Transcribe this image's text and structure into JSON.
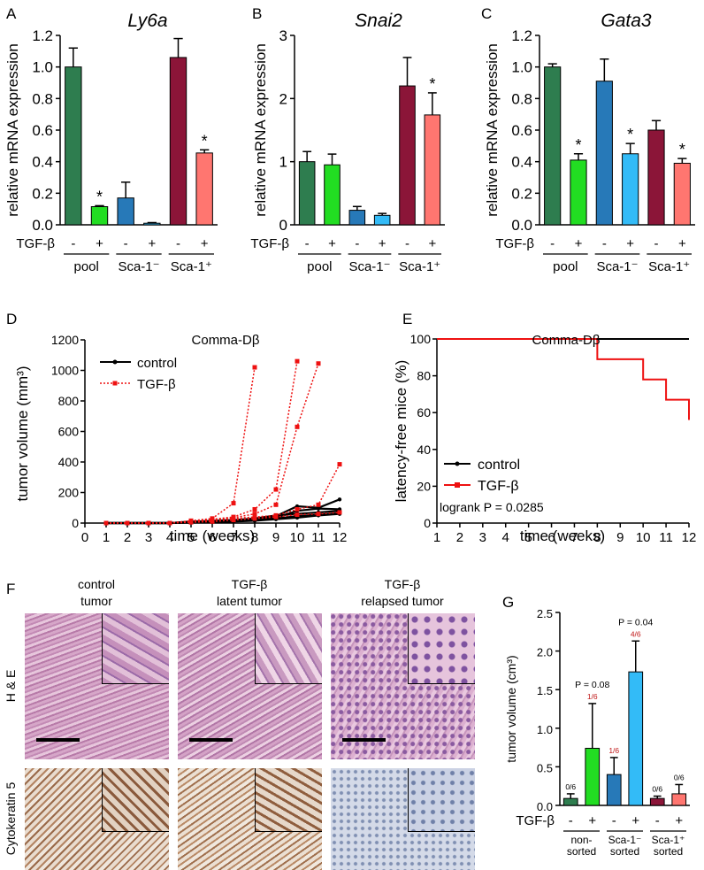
{
  "panels": {
    "A": {
      "letter": "A",
      "gene": "Ly6a",
      "ylabel": "relative mRNA expression"
    },
    "B": {
      "letter": "B",
      "gene": "Snai2",
      "ylabel": "relative mRNA expression"
    },
    "C": {
      "letter": "C",
      "gene": "Gata3",
      "ylabel": "relative mRNA expression"
    },
    "D": {
      "letter": "D",
      "title": "Comma-Dβ",
      "ylabel": "tumor volume (mm³)",
      "xlabel": "time (weeks)"
    },
    "E": {
      "letter": "E",
      "title": "Comma-Dβ",
      "ylabel": "latency-free mice (%)",
      "xlabel": "time (weeks)",
      "stat": "logrank P = 0.0285"
    },
    "F": {
      "letter": "F",
      "col_titles": [
        [
          "control",
          "tumor"
        ],
        [
          "TGF-β",
          "latent tumor"
        ],
        [
          "TGF-β",
          "relapsed tumor"
        ]
      ],
      "row_labels": [
        "H & E",
        "Cytokeratin 5"
      ]
    },
    "G": {
      "letter": "G",
      "ylabel": "tumor volume (cm³)"
    }
  },
  "colors": {
    "dark_green": "#2e7d4f",
    "green": "#22dd22",
    "dark_blue": "#2779b8",
    "light_blue": "#33bbf7",
    "dark_red": "#8b1538",
    "salmon": "#ff7670",
    "line_red": "#ee1111"
  },
  "chart_data": [
    {
      "id": "A",
      "type": "bar",
      "title": "Ly6a",
      "ylabel": "relative mRNA expression",
      "ylim": [
        0,
        1.2
      ],
      "yticks": [
        "0.0",
        "0.2",
        "0.4",
        "0.6",
        "0.8",
        "1.0",
        "1.2"
      ],
      "treatment_label": "TGF-β",
      "treatment": [
        "-",
        "+",
        "-",
        "+",
        "-",
        "+"
      ],
      "groups": [
        "pool",
        "Sca-1⁻",
        "Sca-1⁺"
      ],
      "values": [
        1.0,
        0.115,
        0.17,
        0.01,
        1.06,
        0.455
      ],
      "errors": [
        0.12,
        0.006,
        0.1,
        0.004,
        0.12,
        0.02
      ],
      "significant": [
        false,
        true,
        false,
        false,
        false,
        true
      ]
    },
    {
      "id": "B",
      "type": "bar",
      "title": "Snai2",
      "ylabel": "relative mRNA expression",
      "ylim": [
        0,
        3
      ],
      "yticks": [
        "0",
        "1",
        "2",
        "3"
      ],
      "treatment_label": "TGF-β",
      "treatment": [
        "-",
        "+",
        "-",
        "+",
        "-",
        "+"
      ],
      "groups": [
        "pool",
        "Sca-1⁻",
        "Sca-1⁺"
      ],
      "values": [
        1.0,
        0.95,
        0.23,
        0.15,
        2.2,
        1.74
      ],
      "errors": [
        0.16,
        0.17,
        0.06,
        0.03,
        0.45,
        0.35
      ],
      "significant": [
        false,
        false,
        false,
        false,
        false,
        true
      ]
    },
    {
      "id": "C",
      "type": "bar",
      "title": "Gata3",
      "ylabel": "relative mRNA expression",
      "ylim": [
        0,
        1.2
      ],
      "yticks": [
        "0.0",
        "0.2",
        "0.4",
        "0.6",
        "0.8",
        "1.0",
        "1.2"
      ],
      "treatment_label": "TGF-β",
      "treatment": [
        "-",
        "+",
        "-",
        "+",
        "-",
        "+"
      ],
      "groups": [
        "pool",
        "Sca-1⁻",
        "Sca-1⁺"
      ],
      "values": [
        1.0,
        0.41,
        0.91,
        0.45,
        0.6,
        0.39
      ],
      "errors": [
        0.02,
        0.04,
        0.14,
        0.065,
        0.06,
        0.03
      ],
      "significant": [
        false,
        true,
        false,
        true,
        false,
        true
      ]
    },
    {
      "id": "D",
      "type": "line",
      "title": "Comma-Dβ",
      "xlabel": "time (weeks)",
      "ylabel": "tumor volume (mm³)",
      "xlim": [
        0,
        12
      ],
      "ylim": [
        0,
        1200
      ],
      "xticks": [
        "0",
        "1",
        "2",
        "3",
        "4",
        "5",
        "6",
        "7",
        "8",
        "9",
        "10",
        "11",
        "12"
      ],
      "yticks": [
        "0",
        "200",
        "400",
        "600",
        "800",
        "1000",
        "1200"
      ],
      "series": [
        {
          "name": "control",
          "style": "solid",
          "curves": [
            {
              "x": [
                1,
                2,
                3,
                4,
                5,
                6,
                7,
                8,
                9,
                10,
                11,
                12
              ],
              "y": [
                0,
                0,
                0,
                0,
                5,
                10,
                15,
                25,
                45,
                110,
                100,
                155
              ]
            },
            {
              "x": [
                1,
                2,
                3,
                4,
                5,
                6,
                7,
                8,
                9,
                10,
                11,
                12
              ],
              "y": [
                0,
                0,
                0,
                0,
                10,
                12,
                18,
                22,
                35,
                80,
                95,
                90
              ]
            },
            {
              "x": [
                1,
                2,
                3,
                4,
                5,
                6,
                7,
                8,
                9,
                10,
                11,
                12
              ],
              "y": [
                0,
                0,
                0,
                0,
                8,
                15,
                20,
                30,
                50,
                60,
                70,
                80
              ]
            },
            {
              "x": [
                1,
                2,
                3,
                4,
                5,
                6,
                7,
                8,
                9,
                10,
                11,
                12
              ],
              "y": [
                0,
                0,
                0,
                0,
                5,
                8,
                12,
                20,
                30,
                45,
                55,
                65
              ]
            },
            {
              "x": [
                1,
                2,
                3,
                4,
                5,
                6,
                7,
                8,
                9,
                10,
                11,
                12
              ],
              "y": [
                0,
                0,
                0,
                0,
                3,
                6,
                10,
                15,
                25,
                35,
                50,
                60
              ]
            }
          ]
        },
        {
          "name": "TGF-β",
          "style": "dotted",
          "curves": [
            {
              "x": [
                1,
                2,
                3,
                4,
                5,
                6,
                7,
                8
              ],
              "y": [
                0,
                0,
                0,
                0,
                15,
                30,
                130,
                1020
              ]
            },
            {
              "x": [
                1,
                2,
                3,
                4,
                5,
                6,
                7,
                8,
                9,
                10
              ],
              "y": [
                0,
                0,
                0,
                0,
                10,
                25,
                40,
                90,
                220,
                1060
              ]
            },
            {
              "x": [
                1,
                2,
                3,
                4,
                5,
                6,
                7,
                8,
                9,
                10,
                11
              ],
              "y": [
                0,
                0,
                0,
                0,
                10,
                20,
                35,
                60,
                120,
                630,
                1045
              ]
            },
            {
              "x": [
                1,
                2,
                3,
                4,
                5,
                6,
                7,
                8,
                9,
                10,
                11,
                12
              ],
              "y": [
                0,
                0,
                0,
                0,
                15,
                20,
                30,
                40,
                50,
                90,
                120,
                385
              ]
            },
            {
              "x": [
                1,
                2,
                3,
                4,
                5,
                6,
                7,
                8,
                9,
                10,
                11,
                12
              ],
              "y": [
                0,
                0,
                0,
                0,
                5,
                10,
                20,
                30,
                40,
                55,
                60,
                70
              ]
            }
          ]
        }
      ]
    },
    {
      "id": "E",
      "type": "line",
      "title": "Comma-Dβ",
      "xlabel": "time (weeks)",
      "ylabel": "latency-free mice (%)",
      "xlim": [
        1,
        12
      ],
      "ylim": [
        0,
        100
      ],
      "xticks": [
        "1",
        "2",
        "3",
        "4",
        "5",
        "6",
        "7",
        "8",
        "9",
        "10",
        "11",
        "12"
      ],
      "yticks": [
        "0",
        "20",
        "40",
        "60",
        "80",
        "100"
      ],
      "series": [
        {
          "name": "control",
          "x": [
            1,
            12
          ],
          "y": [
            100,
            100
          ]
        },
        {
          "name": "TGF-β",
          "x": [
            1,
            8,
            8,
            10,
            10,
            11,
            11,
            12,
            12
          ],
          "y": [
            100,
            100,
            89,
            89,
            78,
            78,
            67,
            67,
            56
          ]
        }
      ],
      "annotation": "logrank P = 0.0285"
    },
    {
      "id": "G",
      "type": "bar",
      "ylabel": "tumor volume (cm³)",
      "ylim": [
        0,
        2.5
      ],
      "yticks": [
        "0.0",
        "0.5",
        "1.0",
        "1.5",
        "2.0",
        "2.5"
      ],
      "treatment_label": "TGF-β",
      "treatment": [
        "-",
        "+",
        "-",
        "+",
        "-",
        "+"
      ],
      "groups": [
        [
          "non-",
          "sorted"
        ],
        [
          "Sca-1⁻",
          "sorted"
        ],
        [
          "Sca-1⁺",
          "sorted"
        ]
      ],
      "values": [
        0.09,
        0.74,
        0.4,
        1.73,
        0.09,
        0.15
      ],
      "errors": [
        0.06,
        0.58,
        0.22,
        0.4,
        0.03,
        0.12
      ],
      "counts": [
        "0/6",
        "1/6",
        "1/6",
        "4/6",
        "0/6",
        "0/6"
      ],
      "pvalues": [
        {
          "bar": 1,
          "text": "P = 0.08"
        },
        {
          "bar": 3,
          "text": "P = 0.04"
        }
      ]
    }
  ]
}
